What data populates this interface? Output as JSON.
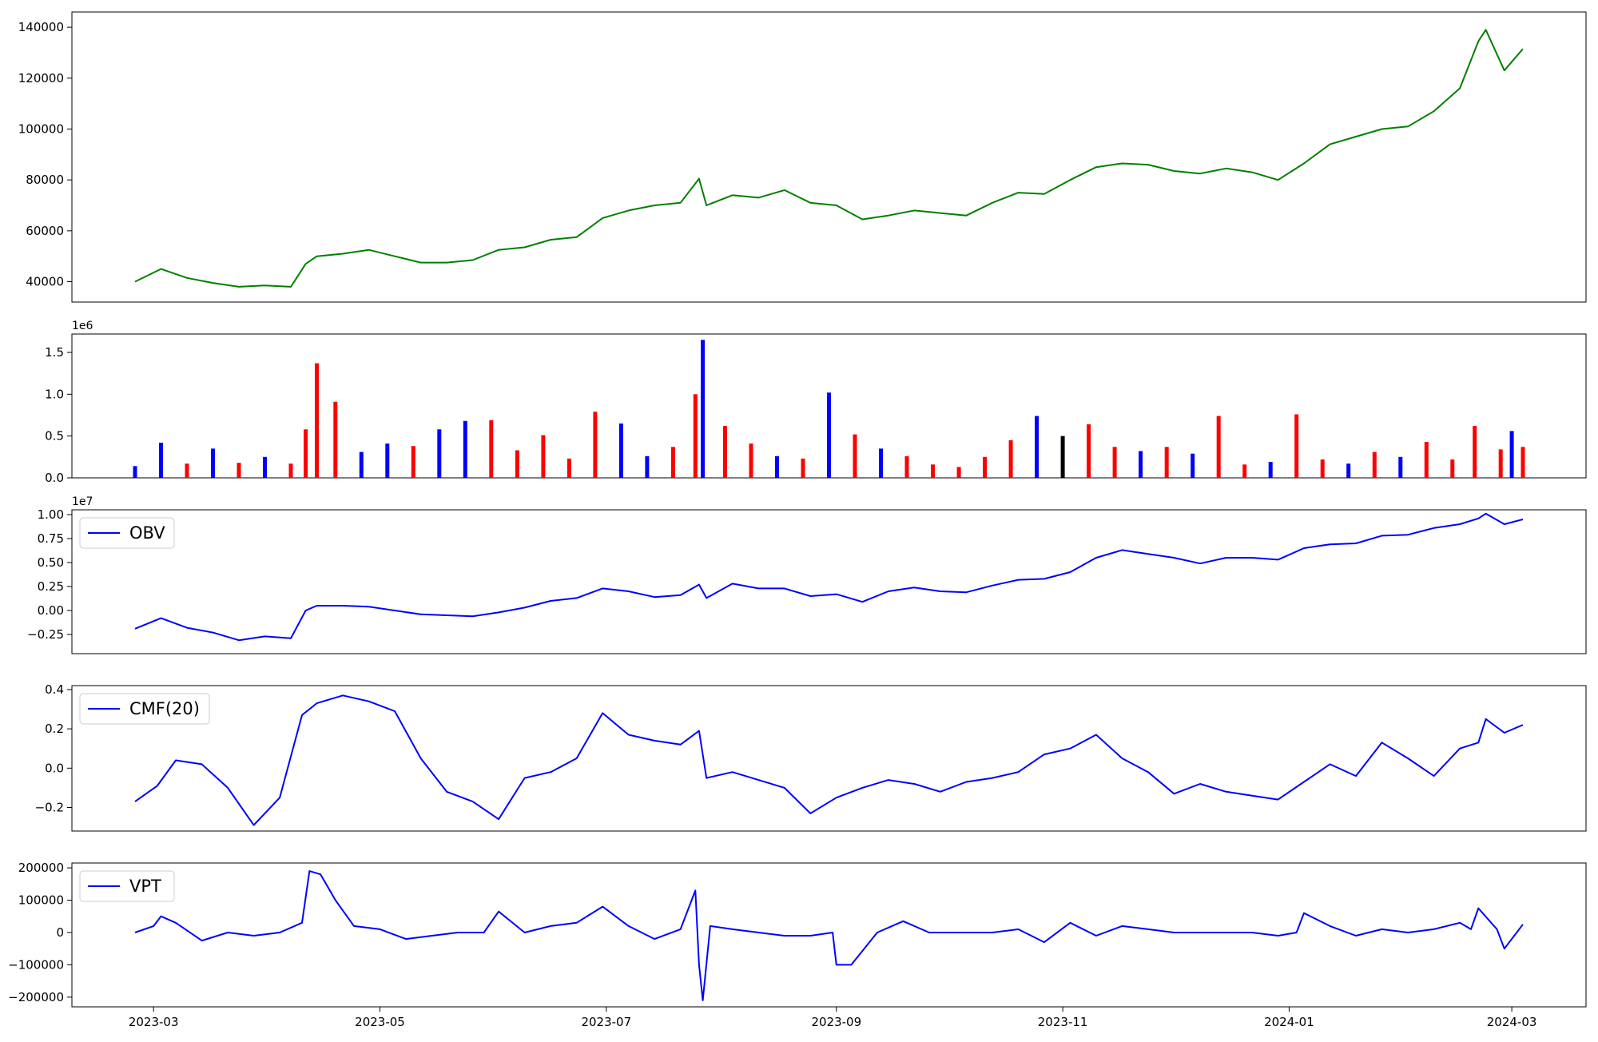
{
  "x_axis": {
    "type": "date",
    "range": [
      "2023-02-07",
      "2024-03-21"
    ],
    "ticks": [
      "2023-03-01",
      "2023-05-01",
      "2023-07-01",
      "2023-09-01",
      "2023-11-01",
      "2024-01-01",
      "2024-03-01"
    ],
    "tick_labels": [
      "2023-03",
      "2023-05",
      "2023-07",
      "2023-09",
      "2023-11",
      "2024-01",
      "2024-03"
    ]
  },
  "colors": {
    "price_line": "#008000",
    "volume_up": "#0000ff",
    "volume_down": "#ff0000",
    "volume_flat": "#000000",
    "indicator_line": "#0000ff",
    "axes": "#000000"
  },
  "chart_data": [
    {
      "type": "line",
      "panel": "price",
      "ylim": [
        32000,
        146000
      ],
      "yticks": [
        40000,
        60000,
        80000,
        100000,
        120000,
        140000
      ],
      "ytick_labels": [
        "40000",
        "60000",
        "80000",
        "100000",
        "120000",
        "140000"
      ],
      "grid": false,
      "color": "#008000",
      "x": [
        "2023-02-24",
        "2023-03-03",
        "2023-03-10",
        "2023-03-17",
        "2023-03-24",
        "2023-03-31",
        "2023-04-07",
        "2023-04-11",
        "2023-04-14",
        "2023-04-21",
        "2023-04-28",
        "2023-05-05",
        "2023-05-12",
        "2023-05-19",
        "2023-05-26",
        "2023-06-02",
        "2023-06-09",
        "2023-06-16",
        "2023-06-23",
        "2023-06-30",
        "2023-07-07",
        "2023-07-14",
        "2023-07-21",
        "2023-07-26",
        "2023-07-28",
        "2023-08-04",
        "2023-08-11",
        "2023-08-18",
        "2023-08-25",
        "2023-09-01",
        "2023-09-08",
        "2023-09-15",
        "2023-09-22",
        "2023-09-29",
        "2023-10-06",
        "2023-10-13",
        "2023-10-20",
        "2023-10-27",
        "2023-11-03",
        "2023-11-10",
        "2023-11-17",
        "2023-11-24",
        "2023-12-01",
        "2023-12-08",
        "2023-12-15",
        "2023-12-22",
        "2023-12-29",
        "2024-01-05",
        "2024-01-12",
        "2024-01-19",
        "2024-01-26",
        "2024-02-02",
        "2024-02-09",
        "2024-02-16",
        "2024-02-21",
        "2024-02-23",
        "2024-02-28",
        "2024-03-04"
      ],
      "y": [
        40000,
        45000,
        41500,
        39500,
        38000,
        38500,
        38000,
        47000,
        50000,
        51000,
        52500,
        50000,
        47500,
        47500,
        48500,
        52500,
        53500,
        56500,
        57500,
        65000,
        68000,
        70000,
        71000,
        80500,
        70000,
        74000,
        73000,
        76000,
        71000,
        70000,
        64500,
        66000,
        68000,
        67000,
        66000,
        71000,
        75000,
        74500,
        80000,
        85000,
        86500,
        86000,
        83500,
        82500,
        84500,
        83000,
        80000,
        86500,
        94000,
        97000,
        100000,
        101000,
        107000,
        116000,
        134500,
        139000,
        123000,
        131500
      ]
    },
    {
      "type": "bar",
      "panel": "volume",
      "ylim": [
        0,
        1720000
      ],
      "yticks": [
        0,
        500000,
        1000000,
        1500000
      ],
      "ytick_labels": [
        "0.0",
        "0.5",
        "1.0",
        "1.5"
      ],
      "offset_text": "1e6",
      "grid": false,
      "x": [
        "2023-02-24",
        "2023-03-03",
        "2023-03-10",
        "2023-03-17",
        "2023-03-24",
        "2023-03-31",
        "2023-04-07",
        "2023-04-11",
        "2023-04-14",
        "2023-04-19",
        "2023-04-26",
        "2023-05-03",
        "2023-05-10",
        "2023-05-17",
        "2023-05-24",
        "2023-05-31",
        "2023-06-07",
        "2023-06-14",
        "2023-06-21",
        "2023-06-28",
        "2023-07-05",
        "2023-07-12",
        "2023-07-19",
        "2023-07-25",
        "2023-07-27",
        "2023-08-02",
        "2023-08-09",
        "2023-08-16",
        "2023-08-23",
        "2023-08-30",
        "2023-09-06",
        "2023-09-13",
        "2023-09-20",
        "2023-09-27",
        "2023-10-04",
        "2023-10-11",
        "2023-10-18",
        "2023-10-25",
        "2023-11-01",
        "2023-11-08",
        "2023-11-15",
        "2023-11-22",
        "2023-11-29",
        "2023-12-06",
        "2023-12-13",
        "2023-12-20",
        "2023-12-27",
        "2024-01-03",
        "2024-01-10",
        "2024-01-17",
        "2024-01-24",
        "2024-01-31",
        "2024-02-07",
        "2024-02-14",
        "2024-02-20",
        "2024-02-27",
        "2024-03-01",
        "2024-03-04"
      ],
      "values": [
        140000,
        420000,
        170000,
        350000,
        180000,
        250000,
        170000,
        580000,
        1370000,
        910000,
        310000,
        410000,
        380000,
        580000,
        680000,
        690000,
        330000,
        510000,
        230000,
        790000,
        650000,
        260000,
        370000,
        1000000,
        1650000,
        620000,
        410000,
        260000,
        230000,
        1020000,
        520000,
        350000,
        260000,
        160000,
        130000,
        250000,
        450000,
        740000,
        500000,
        640000,
        370000,
        320000,
        370000,
        290000,
        740000,
        160000,
        190000,
        760000,
        220000,
        170000,
        310000,
        250000,
        430000,
        220000,
        620000,
        340000,
        560000,
        370000
      ],
      "direction": [
        "up",
        "up",
        "down",
        "up",
        "down",
        "up",
        "down",
        "down",
        "down",
        "down",
        "up",
        "up",
        "down",
        "up",
        "up",
        "down",
        "down",
        "down",
        "down",
        "down",
        "up",
        "up",
        "down",
        "down",
        "up",
        "down",
        "down",
        "up",
        "down",
        "up",
        "down",
        "up",
        "down",
        "down",
        "down",
        "down",
        "down",
        "up",
        "flat",
        "down",
        "down",
        "up",
        "down",
        "up",
        "down",
        "down",
        "up",
        "down",
        "down",
        "up",
        "down",
        "up",
        "down",
        "down",
        "down",
        "down",
        "up",
        "down"
      ]
    },
    {
      "type": "line",
      "panel": "obv",
      "series": [
        {
          "name": "OBV"
        }
      ],
      "legend": "top-left",
      "ylim": [
        -4500000,
        10500000
      ],
      "yticks": [
        -2500000,
        0,
        2500000,
        5000000,
        7500000,
        10000000
      ],
      "ytick_labels": [
        "−0.25",
        "0.00",
        "0.25",
        "0.50",
        "0.75",
        "1.00"
      ],
      "offset_text": "1e7",
      "grid": false,
      "x": [
        "2023-02-24",
        "2023-03-03",
        "2023-03-10",
        "2023-03-17",
        "2023-03-24",
        "2023-03-31",
        "2023-04-07",
        "2023-04-11",
        "2023-04-14",
        "2023-04-21",
        "2023-04-28",
        "2023-05-05",
        "2023-05-12",
        "2023-05-19",
        "2023-05-26",
        "2023-06-02",
        "2023-06-09",
        "2023-06-16",
        "2023-06-23",
        "2023-06-30",
        "2023-07-07",
        "2023-07-14",
        "2023-07-21",
        "2023-07-26",
        "2023-07-28",
        "2023-08-04",
        "2023-08-11",
        "2023-08-18",
        "2023-08-25",
        "2023-09-01",
        "2023-09-08",
        "2023-09-15",
        "2023-09-22",
        "2023-09-29",
        "2023-10-06",
        "2023-10-13",
        "2023-10-20",
        "2023-10-27",
        "2023-11-03",
        "2023-11-10",
        "2023-11-17",
        "2023-11-24",
        "2023-12-01",
        "2023-12-08",
        "2023-12-15",
        "2023-12-22",
        "2023-12-29",
        "2024-01-05",
        "2024-01-12",
        "2024-01-19",
        "2024-01-26",
        "2024-02-02",
        "2024-02-09",
        "2024-02-16",
        "2024-02-21",
        "2024-02-23",
        "2024-02-28",
        "2024-03-04"
      ],
      "y": [
        -1900000,
        -800000,
        -1800000,
        -2300000,
        -3100000,
        -2700000,
        -2900000,
        0,
        500000,
        500000,
        400000,
        0,
        -400000,
        -500000,
        -600000,
        -200000,
        300000,
        1000000,
        1300000,
        2300000,
        2000000,
        1400000,
        1600000,
        2700000,
        1300000,
        2800000,
        2300000,
        2300000,
        1500000,
        1700000,
        900000,
        2000000,
        2400000,
        2000000,
        1900000,
        2600000,
        3200000,
        3300000,
        4000000,
        5500000,
        6300000,
        5900000,
        5500000,
        4900000,
        5500000,
        5500000,
        5300000,
        6500000,
        6900000,
        7000000,
        7800000,
        7900000,
        8600000,
        9000000,
        9600000,
        10100000,
        9000000,
        9500000
      ]
    },
    {
      "type": "line",
      "panel": "cmf",
      "series": [
        {
          "name": "CMF(20)"
        }
      ],
      "legend": "top-left",
      "ylim": [
        -0.32,
        0.42
      ],
      "yticks": [
        -0.2,
        0.0,
        0.2,
        0.4
      ],
      "ytick_labels": [
        "−0.2",
        "0.0",
        "0.2",
        "0.4"
      ],
      "grid": false,
      "x": [
        "2023-02-24",
        "2023-03-02",
        "2023-03-07",
        "2023-03-14",
        "2023-03-21",
        "2023-03-28",
        "2023-04-04",
        "2023-04-10",
        "2023-04-14",
        "2023-04-21",
        "2023-04-28",
        "2023-05-05",
        "2023-05-12",
        "2023-05-19",
        "2023-05-26",
        "2023-06-02",
        "2023-06-09",
        "2023-06-16",
        "2023-06-23",
        "2023-06-30",
        "2023-07-07",
        "2023-07-14",
        "2023-07-21",
        "2023-07-26",
        "2023-07-28",
        "2023-08-04",
        "2023-08-11",
        "2023-08-18",
        "2023-08-25",
        "2023-09-01",
        "2023-09-08",
        "2023-09-15",
        "2023-09-22",
        "2023-09-29",
        "2023-10-06",
        "2023-10-13",
        "2023-10-20",
        "2023-10-27",
        "2023-11-03",
        "2023-11-10",
        "2023-11-17",
        "2023-11-24",
        "2023-12-01",
        "2023-12-08",
        "2023-12-15",
        "2023-12-22",
        "2023-12-29",
        "2024-01-05",
        "2024-01-12",
        "2024-01-19",
        "2024-01-26",
        "2024-02-02",
        "2024-02-09",
        "2024-02-16",
        "2024-02-21",
        "2024-02-23",
        "2024-02-28",
        "2024-03-04"
      ],
      "y": [
        -0.17,
        -0.09,
        0.04,
        0.02,
        -0.1,
        -0.29,
        -0.15,
        0.27,
        0.33,
        0.37,
        0.34,
        0.29,
        0.05,
        -0.12,
        -0.17,
        -0.26,
        -0.05,
        -0.02,
        0.05,
        0.28,
        0.17,
        0.14,
        0.12,
        0.19,
        -0.05,
        -0.02,
        -0.06,
        -0.1,
        -0.23,
        -0.15,
        -0.1,
        -0.06,
        -0.08,
        -0.12,
        -0.07,
        -0.05,
        -0.02,
        0.07,
        0.1,
        0.17,
        0.05,
        -0.02,
        -0.13,
        -0.08,
        -0.12,
        -0.14,
        -0.16,
        -0.07,
        0.02,
        -0.04,
        0.13,
        0.05,
        -0.04,
        0.1,
        0.13,
        0.25,
        0.18,
        0.22
      ]
    },
    {
      "type": "line",
      "panel": "vpt",
      "series": [
        {
          "name": "VPT"
        }
      ],
      "legend": "top-left",
      "ylim": [
        -230000,
        215000
      ],
      "yticks": [
        -200000,
        -100000,
        0,
        100000,
        200000
      ],
      "ytick_labels": [
        "−200000",
        "−100000",
        "0",
        "100000",
        "200000"
      ],
      "grid": false,
      "x": [
        "2023-02-24",
        "2023-03-01",
        "2023-03-03",
        "2023-03-07",
        "2023-03-14",
        "2023-03-21",
        "2023-03-28",
        "2023-04-04",
        "2023-04-10",
        "2023-04-12",
        "2023-04-15",
        "2023-04-19",
        "2023-04-24",
        "2023-05-01",
        "2023-05-08",
        "2023-05-15",
        "2023-05-22",
        "2023-05-29",
        "2023-06-02",
        "2023-06-09",
        "2023-06-16",
        "2023-06-23",
        "2023-06-30",
        "2023-07-07",
        "2023-07-14",
        "2023-07-21",
        "2023-07-25",
        "2023-07-26",
        "2023-07-27",
        "2023-07-29",
        "2023-08-04",
        "2023-08-11",
        "2023-08-18",
        "2023-08-25",
        "2023-08-31",
        "2023-09-01",
        "2023-09-05",
        "2023-09-12",
        "2023-09-19",
        "2023-09-26",
        "2023-10-06",
        "2023-10-13",
        "2023-10-20",
        "2023-10-27",
        "2023-11-03",
        "2023-11-10",
        "2023-11-17",
        "2023-11-24",
        "2023-12-01",
        "2023-12-08",
        "2023-12-15",
        "2023-12-22",
        "2023-12-29",
        "2024-01-03",
        "2024-01-05",
        "2024-01-12",
        "2024-01-19",
        "2024-01-26",
        "2024-02-02",
        "2024-02-09",
        "2024-02-16",
        "2024-02-19",
        "2024-02-21",
        "2024-02-26",
        "2024-02-28",
        "2024-03-04"
      ],
      "y": [
        0,
        20000,
        50000,
        30000,
        -25000,
        0,
        -10000,
        0,
        30000,
        190000,
        180000,
        100000,
        20000,
        10000,
        -20000,
        -10000,
        0,
        0,
        65000,
        0,
        20000,
        30000,
        80000,
        20000,
        -20000,
        10000,
        130000,
        -100000,
        -210000,
        20000,
        10000,
        0,
        -10000,
        -10000,
        0,
        -100000,
        -100000,
        0,
        35000,
        0,
        0,
        0,
        10000,
        -30000,
        30000,
        -10000,
        20000,
        10000,
        0,
        0,
        0,
        0,
        -10000,
        0,
        60000,
        20000,
        -10000,
        10000,
        0,
        10000,
        30000,
        10000,
        75000,
        10000,
        -50000,
        25000
      ]
    }
  ]
}
